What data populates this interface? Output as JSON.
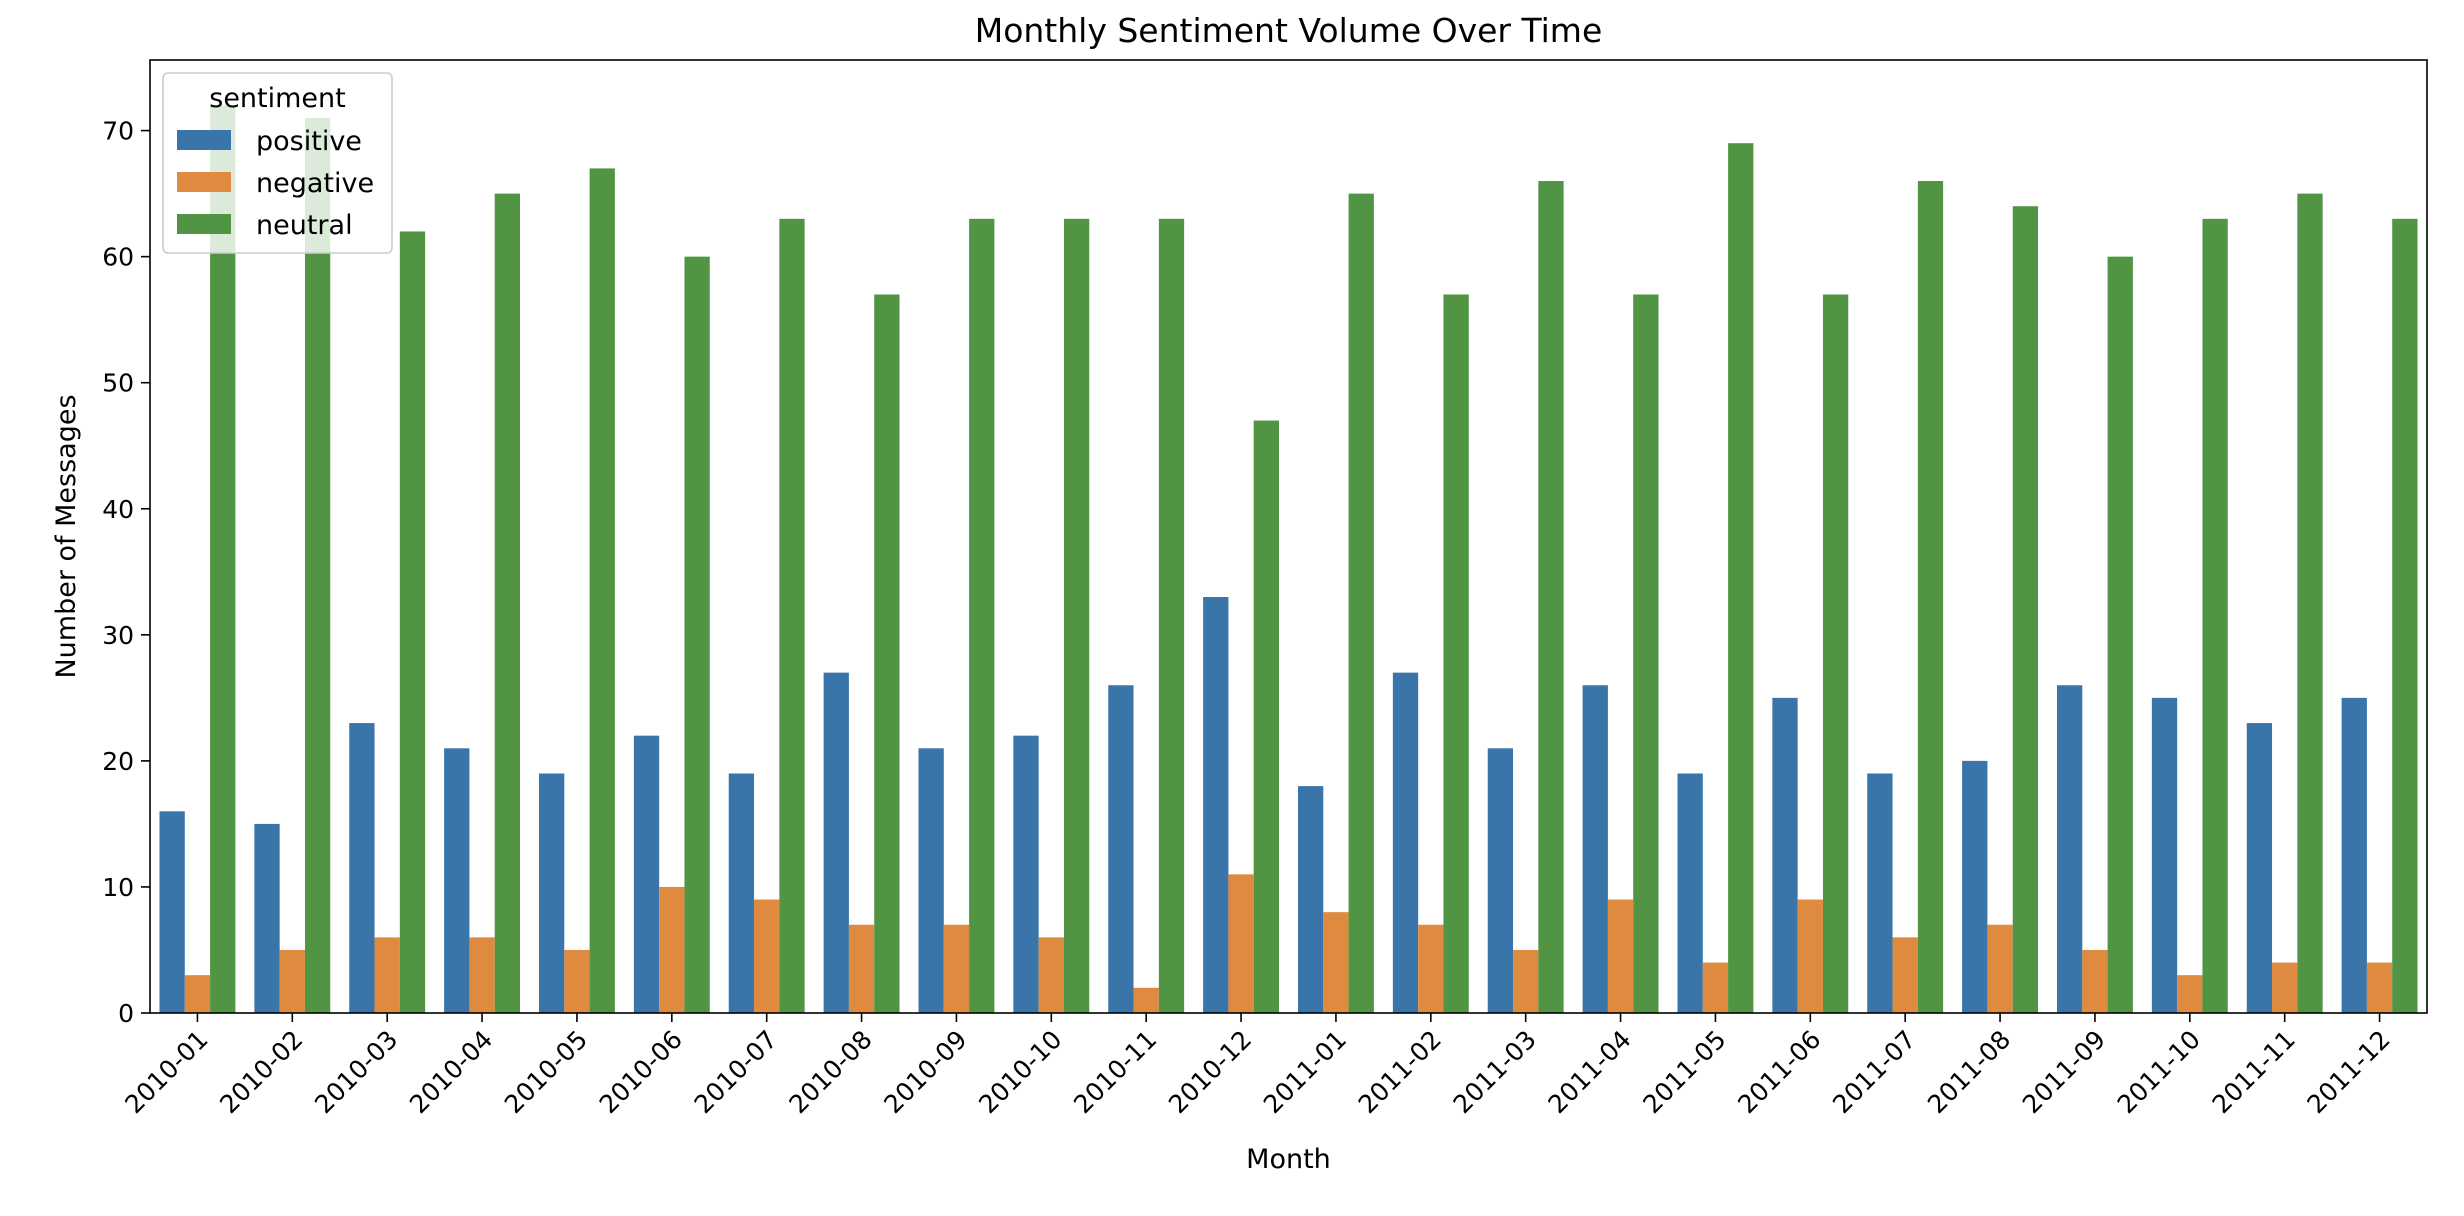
{
  "chart_data": {
    "type": "bar",
    "title": "Monthly Sentiment Volume Over Time",
    "xlabel": "Month",
    "ylabel": "Number of Messages",
    "ylim": [
      0,
      75.6
    ],
    "yticks": [
      0,
      10,
      20,
      30,
      40,
      50,
      60,
      70
    ],
    "grid": false,
    "legend": {
      "title": "sentiment",
      "placement": "top-left"
    },
    "categories": [
      "2010-01",
      "2010-02",
      "2010-03",
      "2010-04",
      "2010-05",
      "2010-06",
      "2010-07",
      "2010-08",
      "2010-09",
      "2010-10",
      "2010-11",
      "2010-12",
      "2011-01",
      "2011-02",
      "2011-03",
      "2011-04",
      "2011-05",
      "2011-06",
      "2011-07",
      "2011-08",
      "2011-09",
      "2011-10",
      "2011-11",
      "2011-12"
    ],
    "series": [
      {
        "name": "positive",
        "color": "#3a75aa",
        "values": [
          16,
          15,
          23,
          21,
          19,
          22,
          19,
          27,
          21,
          22,
          26,
          33,
          18,
          27,
          21,
          26,
          19,
          25,
          19,
          20,
          26,
          25,
          23,
          25
        ]
      },
      {
        "name": "negative",
        "color": "#de8a3f",
        "values": [
          3,
          5,
          6,
          6,
          5,
          10,
          9,
          7,
          7,
          6,
          2,
          11,
          8,
          7,
          5,
          9,
          4,
          9,
          6,
          7,
          5,
          3,
          4,
          4
        ]
      },
      {
        "name": "neutral",
        "color": "#519544",
        "values": [
          72,
          71,
          62,
          65,
          67,
          60,
          63,
          57,
          63,
          63,
          63,
          47,
          65,
          57,
          66,
          57,
          69,
          57,
          66,
          64,
          60,
          63,
          65,
          63
        ]
      }
    ]
  }
}
